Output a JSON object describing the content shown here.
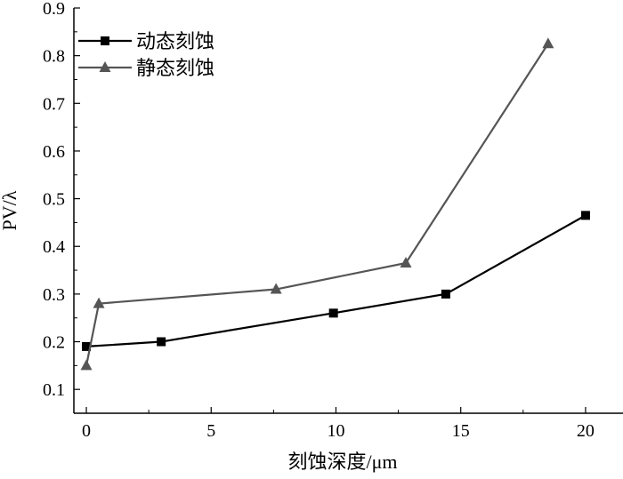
{
  "chart_data": {
    "type": "line",
    "title": "",
    "xlabel": "刻蚀深度/μm",
    "ylabel": "PV/λ",
    "xlim": [
      -0.5,
      21.5
    ],
    "ylim": [
      0.05,
      0.9
    ],
    "xticks": [
      0,
      5,
      10,
      15,
      20
    ],
    "yticks": [
      0.1,
      0.2,
      0.3,
      0.4,
      0.5,
      0.6,
      0.7,
      0.8,
      0.9
    ],
    "grid": false,
    "legend_position": "top-left",
    "series": [
      {
        "name": "动态刻蚀",
        "marker": "square",
        "color": "#000000",
        "x": [
          0,
          3,
          9.9,
          14.4,
          20
        ],
        "y": [
          0.19,
          0.2,
          0.26,
          0.3,
          0.465
        ]
      },
      {
        "name": "静态刻蚀",
        "marker": "triangle",
        "color": "#555555",
        "x": [
          0,
          0.5,
          7.6,
          12.8,
          18.5
        ],
        "y": [
          0.15,
          0.28,
          0.31,
          0.365,
          0.825
        ]
      }
    ]
  }
}
